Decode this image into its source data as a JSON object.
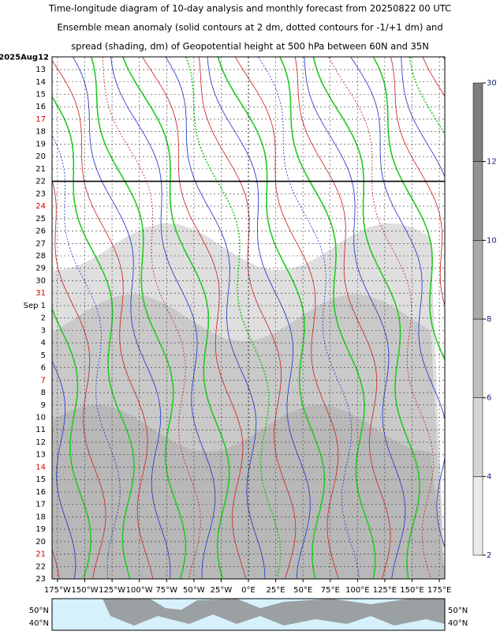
{
  "chart_data": {
    "type": "hovmoller",
    "title_lines": [
      "Time-longitude diagram of 10-day analysis and monthly forecast from 20250822 00 UTC",
      "Ensemble mean anomaly (solid contours at 2 dm, dotted contours for -1/+1 dm) and",
      "spread (shading, dm) of Geopotential height at 500 hPa between 60N and 35N"
    ],
    "xlim": [
      -180,
      180
    ],
    "xticks": [
      {
        "value": -175,
        "label": "175°W"
      },
      {
        "value": -150,
        "label": "150°W"
      },
      {
        "value": -125,
        "label": "125°W"
      },
      {
        "value": -100,
        "label": "100°W"
      },
      {
        "value": -75,
        "label": "75°W"
      },
      {
        "value": -50,
        "label": "50°W"
      },
      {
        "value": -25,
        "label": "25°W"
      },
      {
        "value": 0,
        "label": "0°E"
      },
      {
        "value": 25,
        "label": "25°E"
      },
      {
        "value": 50,
        "label": "50°E"
      },
      {
        "value": 75,
        "label": "75°E"
      },
      {
        "value": 100,
        "label": "100°E"
      },
      {
        "value": 125,
        "label": "125°E"
      },
      {
        "value": 150,
        "label": "150°E"
      },
      {
        "value": 175,
        "label": "175°E"
      }
    ],
    "y_categories": [
      "2025Aug12",
      "13",
      "14",
      "15",
      "16",
      "17",
      "18",
      "19",
      "20",
      "21",
      "22",
      "23",
      "24",
      "25",
      "26",
      "27",
      "28",
      "29",
      "30",
      "31",
      "Sep  1",
      "2",
      "3",
      "4",
      "5",
      "6",
      "7",
      "8",
      "9",
      "10",
      "11",
      "12",
      "13",
      "14",
      "15",
      "16",
      "17",
      "18",
      "19",
      "20",
      "21",
      "22",
      "23"
    ],
    "weekend_color": "#d00000",
    "separator_date": "22",
    "grid": true,
    "colorbar_levels": [
      2,
      4,
      6,
      8,
      10,
      12,
      30
    ],
    "colorbar_label_color": "#1a237e",
    "map_lat_labels": [
      "50°N",
      "40°N"
    ]
  }
}
